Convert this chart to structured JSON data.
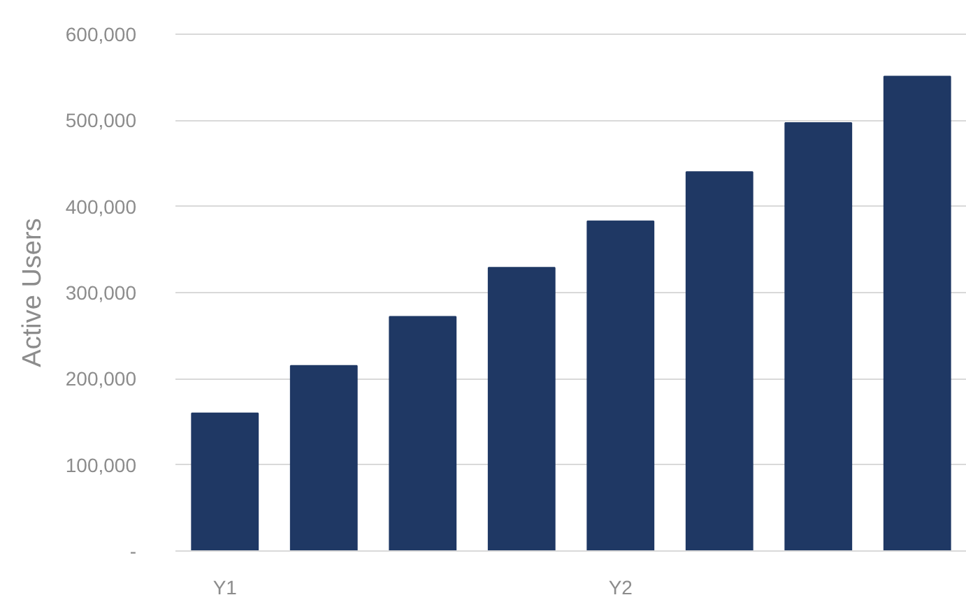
{
  "chart_data": {
    "type": "bar",
    "ylabel": "Active Users",
    "categories": [
      "Y1",
      null,
      null,
      null,
      "Y2",
      null,
      null,
      null
    ],
    "values": [
      160000,
      215000,
      272000,
      329000,
      383000,
      440000,
      497000,
      551000
    ],
    "color": "#1f3864",
    "ylim": [
      0,
      600000
    ],
    "yticks": [
      {
        "value": 0,
        "label": "-"
      },
      {
        "value": 100000,
        "label": "100,000"
      },
      {
        "value": 200000,
        "label": "200,000"
      },
      {
        "value": 300000,
        "label": "300,000"
      },
      {
        "value": 400000,
        "label": "400,000"
      },
      {
        "value": 500000,
        "label": "500,000"
      },
      {
        "value": 600000,
        "label": "600,000"
      }
    ],
    "grid": "y"
  }
}
